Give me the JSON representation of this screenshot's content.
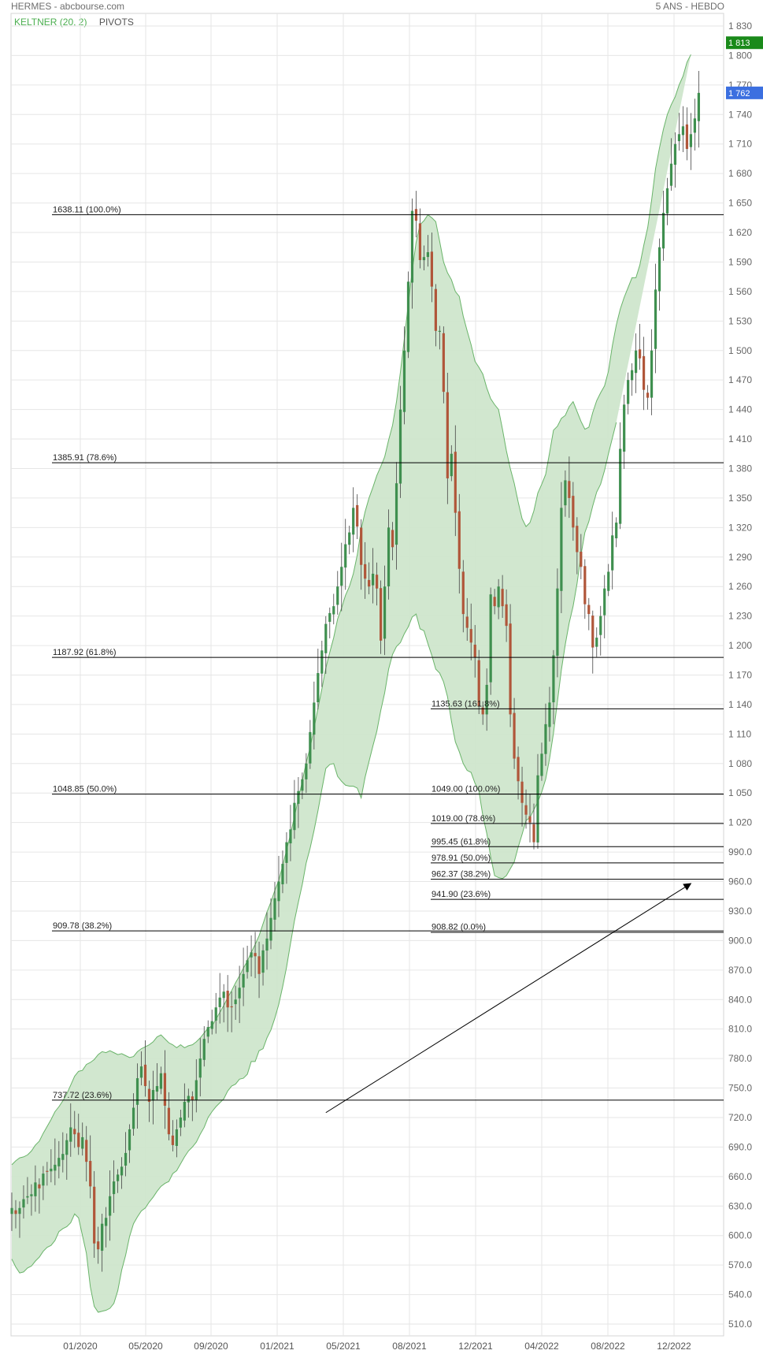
{
  "header": {
    "title": "HERMES - abcbourse.com",
    "period": "5 ANS - HEBDO"
  },
  "legend": {
    "keltner": "KELTNER (20, 2)",
    "pivots": "PIVOTS"
  },
  "colors": {
    "up": "#3f8f4f",
    "down": "#b0563a",
    "band_fill": "#cfe6cc",
    "band_stroke": "#6ab46a",
    "grid": "#e6e6e6",
    "tag_high": "#1a8a1a",
    "tag_last": "#3b6fe0"
  },
  "chart_data": {
    "type": "candlestick",
    "ylim": [
      495,
      1840
    ],
    "x_ticks": [
      "01/2020",
      "05/2020",
      "09/2020",
      "01/2021",
      "05/2021",
      "08/2021",
      "12/2021",
      "04/2022",
      "08/2022",
      "12/2022"
    ],
    "y_ticks": [
      "1 830",
      "1 800",
      "1 770",
      "1 740",
      "1 710",
      "1 680",
      "1 650",
      "1 620",
      "1 590",
      "1 560",
      "1 530",
      "1 500",
      "1 470",
      "1 440",
      "1 410",
      "1 380",
      "1 350",
      "1 320",
      "1 290",
      "1 260",
      "1 230",
      "1 200",
      "1 170",
      "1 140",
      "1 110",
      "1 080",
      "1 050",
      "1 020",
      "990.0",
      "960.0",
      "930.0",
      "900.0",
      "870.0",
      "840.0",
      "810.0",
      "780.0",
      "750.0",
      "720.0",
      "690.0",
      "660.0",
      "630.0",
      "600.0",
      "570.0",
      "540.0",
      "510.0"
    ],
    "price_tags": [
      {
        "label": "1 813",
        "value": 1813,
        "color": "#1a8a1a"
      },
      {
        "label": "1 762",
        "value": 1762,
        "color": "#3b6fe0"
      }
    ],
    "fibonacci_left": [
      {
        "label": "1638.11  (100.0%)",
        "value": 1638.11
      },
      {
        "label": "1385.91  (78.6%)",
        "value": 1385.91
      },
      {
        "label": "1187.92  (61.8%)",
        "value": 1187.92
      },
      {
        "label": "1048.85  (50.0%)",
        "value": 1048.85
      },
      {
        "label": "909.78  (38.2%)",
        "value": 909.78
      },
      {
        "label": "737.72  (23.6%)",
        "value": 737.72
      }
    ],
    "fibonacci_right": [
      {
        "label": "1135.63  (161.8%)",
        "value": 1135.63
      },
      {
        "label": "1049.00  (100.0%)",
        "value": 1049.0
      },
      {
        "label": "1019.00  (78.6%)",
        "value": 1019.0
      },
      {
        "label": "995.45  (61.8%)",
        "value": 995.45
      },
      {
        "label": "978.91  (50.0%)",
        "value": 978.91
      },
      {
        "label": "962.37  (38.2%)",
        "value": 962.37
      },
      {
        "label": "941.90  (23.6%)",
        "value": 941.9
      },
      {
        "label": "908.82  (0.0%)",
        "value": 908.82
      }
    ],
    "arrow": {
      "from": {
        "week": 80,
        "price": 725
      },
      "to": {
        "week": 173,
        "price": 958
      }
    },
    "series": [
      {
        "name": "close",
        "values": [
          628,
          622,
          628,
          637,
          640,
          642,
          654,
          648,
          663,
          665,
          668,
          672,
          679,
          683,
          697,
          710,
          703,
          690,
          700,
          675,
          650,
          592,
          586,
          612,
          618,
          640,
          655,
          662,
          670,
          684,
          708,
          730,
          760,
          772,
          752,
          736,
          748,
          752,
          765,
          732,
          703,
          692,
          708,
          720,
          736,
          742,
          738,
          758,
          780,
          800,
          812,
          818,
          832,
          842,
          848,
          832,
          833,
          840,
          852,
          866,
          880,
          888,
          884,
          866,
          890,
          902,
          923,
          943,
          960,
          978,
          1000,
          1013,
          1040,
          1052,
          1064,
          1080,
          1112,
          1142,
          1172,
          1195,
          1222,
          1233,
          1240,
          1260,
          1280,
          1303,
          1315,
          1340,
          1321,
          1282,
          1268,
          1260,
          1273,
          1258,
          1205,
          1260,
          1320,
          1300,
          1365,
          1440,
          1500,
          1570,
          1642,
          1632,
          1592,
          1595,
          1600,
          1565,
          1520,
          1520,
          1458,
          1370,
          1395,
          1335,
          1278,
          1232,
          1218,
          1203,
          1188,
          1138,
          1130,
          1160,
          1252,
          1240,
          1260,
          1240,
          1220,
          1130,
          1085,
          1062,
          1040,
          1028,
          1020,
          1000,
          1068,
          1090,
          1120,
          1142,
          1190,
          1258,
          1340,
          1368,
          1350,
          1320,
          1295,
          1280,
          1242,
          1232,
          1198,
          1208,
          1230,
          1258,
          1275,
          1312,
          1325,
          1400,
          1445,
          1470,
          1480,
          1500,
          1492,
          1460,
          1452,
          1500,
          1562,
          1605,
          1640,
          1665,
          1690,
          1710,
          1720,
          1728,
          1705,
          1720,
          1736,
          1762
        ]
      },
      {
        "name": "keltner_upper",
        "values": [
          672,
          676,
          679,
          680,
          682,
          686,
          692,
          696,
          704,
          711,
          718,
          726,
          731,
          737,
          744,
          753,
          762,
          767,
          768,
          774,
          776,
          779,
          784,
          787,
          786,
          788,
          786,
          784,
          785,
          783,
          781,
          782,
          787,
          790,
          792,
          794,
          797,
          802,
          804,
          800,
          796,
          794,
          791,
          794,
          791,
          793,
          794,
          797,
          801,
          806,
          811,
          813,
          820,
          827,
          834,
          842,
          849,
          857,
          864,
          872,
          879,
          888,
          896,
          905,
          917,
          929,
          939,
          951,
          961,
          976,
          992,
          1008,
          1026,
          1044,
          1062,
          1081,
          1096,
          1116,
          1136,
          1156,
          1177,
          1193,
          1208,
          1227,
          1238,
          1251,
          1260,
          1273,
          1292,
          1318,
          1336,
          1350,
          1361,
          1373,
          1382,
          1392,
          1409,
          1424,
          1448,
          1478,
          1512,
          1547,
          1581,
          1610,
          1628,
          1632,
          1638,
          1635,
          1631,
          1611,
          1590,
          1579,
          1572,
          1560,
          1555,
          1535,
          1520,
          1506,
          1489,
          1483,
          1476,
          1462,
          1451,
          1445,
          1440,
          1420,
          1398,
          1380,
          1365,
          1346,
          1329,
          1321,
          1325,
          1337,
          1355,
          1364,
          1374,
          1396,
          1419,
          1423,
          1431,
          1434,
          1443,
          1448,
          1438,
          1428,
          1420,
          1422,
          1437,
          1449,
          1457,
          1464,
          1479,
          1505,
          1526,
          1542,
          1554,
          1564,
          1574,
          1574,
          1587,
          1607,
          1625,
          1653,
          1685,
          1706,
          1725,
          1740,
          1750,
          1758,
          1770,
          1779,
          1793,
          1801
        ]
      },
      {
        "name": "keltner_lower",
        "values": [
          576,
          568,
          562,
          563,
          567,
          569,
          574,
          578,
          584,
          588,
          590,
          595,
          604,
          607,
          609,
          613,
          622,
          618,
          600,
          582,
          548,
          528,
          522,
          523,
          524,
          526,
          531,
          544,
          565,
          580,
          599,
          612,
          619,
          625,
          628,
          634,
          639,
          645,
          650,
          653,
          655,
          663,
          666,
          673,
          680,
          686,
          690,
          695,
          703,
          710,
          720,
          726,
          731,
          735,
          739,
          747,
          752,
          754,
          759,
          760,
          764,
          777,
          777,
          788,
          790,
          801,
          809,
          821,
          835,
          853,
          873,
          897,
          920,
          939,
          957,
          979,
          994,
          1012,
          1032,
          1054,
          1075,
          1079,
          1080,
          1067,
          1062,
          1058,
          1057,
          1057,
          1055,
          1045,
          1066,
          1082,
          1098,
          1113,
          1134,
          1152,
          1176,
          1191,
          1199,
          1203,
          1212,
          1219,
          1229,
          1232,
          1217,
          1215,
          1202,
          1190,
          1176,
          1172,
          1163,
          1148,
          1123,
          1102,
          1092,
          1080,
          1073,
          1071,
          1060,
          1052,
          1027,
          1009,
          985,
          966,
          964,
          963,
          966,
          973,
          980,
          995,
          1008,
          1022,
          1025,
          1033,
          1041,
          1051,
          1064,
          1085,
          1111,
          1143,
          1175,
          1201,
          1223,
          1240,
          1263,
          1292,
          1315,
          1326,
          1342,
          1356,
          1364,
          1378,
          1395,
          1411,
          1427
        ]
      }
    ]
  }
}
